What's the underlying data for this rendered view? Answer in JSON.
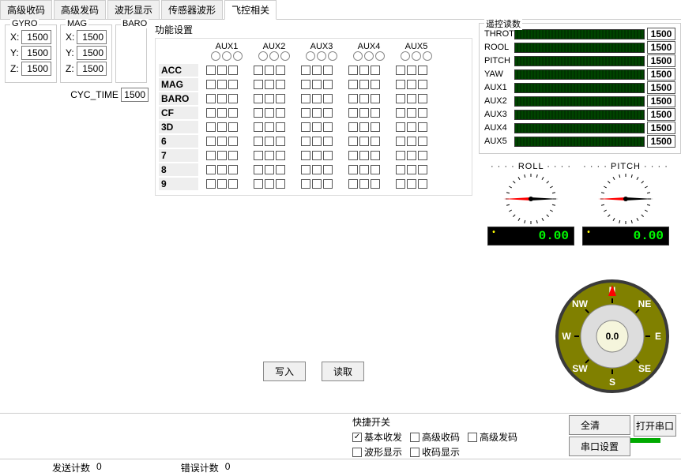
{
  "tabs": [
    "高级收码",
    "高级发码",
    "波形显示",
    "传感器波形",
    "飞控相关"
  ],
  "active_tab": 4,
  "sensor_groups": [
    {
      "name": "GYRO",
      "axes": [
        "X:",
        "Y:",
        "Z:"
      ],
      "vals": [
        "1500",
        "1500",
        "1500"
      ]
    },
    {
      "name": "MAG",
      "axes": [
        "X:",
        "Y:",
        "Z:"
      ],
      "vals": [
        "1500",
        "1500",
        "1500"
      ]
    },
    {
      "name": "BARO",
      "axes": [],
      "vals": []
    }
  ],
  "cyc_label": "CYC_TIME",
  "cyc_val": "1500",
  "func_title": "功能设置",
  "aux_headers": [
    "AUX1",
    "AUX2",
    "AUX3",
    "AUX4",
    "AUX5"
  ],
  "func_rows": [
    "ACC",
    "MAG",
    "BARO",
    "CF",
    "3D",
    "6",
    "7",
    "8",
    "9"
  ],
  "write_btn": "写入",
  "read_btn": "读取",
  "rc_title": "遥控读数",
  "rc_channels": [
    {
      "name": "THROT",
      "val": "1500"
    },
    {
      "name": "ROOL",
      "val": "1500"
    },
    {
      "name": "PITCH",
      "val": "1500"
    },
    {
      "name": "YAW",
      "val": "1500"
    },
    {
      "name": "AUX1",
      "val": "1500"
    },
    {
      "name": "AUX2",
      "val": "1500"
    },
    {
      "name": "AUX3",
      "val": "1500"
    },
    {
      "name": "AUX4",
      "val": "1500"
    },
    {
      "name": "AUX5",
      "val": "1500"
    }
  ],
  "gauges": [
    {
      "title": "ROLL",
      "value": "0.00"
    },
    {
      "title": "PITCH",
      "value": "0.00"
    }
  ],
  "compass": {
    "heading": "0.0",
    "dirs": [
      "N",
      "NE",
      "E",
      "SE",
      "S",
      "SW",
      "W",
      "NW"
    ],
    "ring_color": "#808000",
    "bg_color": "#3a3a3a"
  },
  "quick_title": "快捷开关",
  "quick_checks": [
    {
      "label": "基本收发",
      "checked": true
    },
    {
      "label": "高级收码",
      "checked": false
    },
    {
      "label": "高级发码",
      "checked": false
    },
    {
      "label": "波形显示",
      "checked": false
    },
    {
      "label": "收码显示",
      "checked": false
    }
  ],
  "clear_btn": "全清",
  "port_set_btn": "串口设置",
  "open_port_btn": "打开串口",
  "status": {
    "send_label": "发送计数",
    "send_val": "0",
    "err_label": "错误计数",
    "err_val": "0"
  },
  "colors": {
    "led_green": "#00aa00",
    "digit_green": "#00ff00",
    "bar_dark": "#003300"
  }
}
